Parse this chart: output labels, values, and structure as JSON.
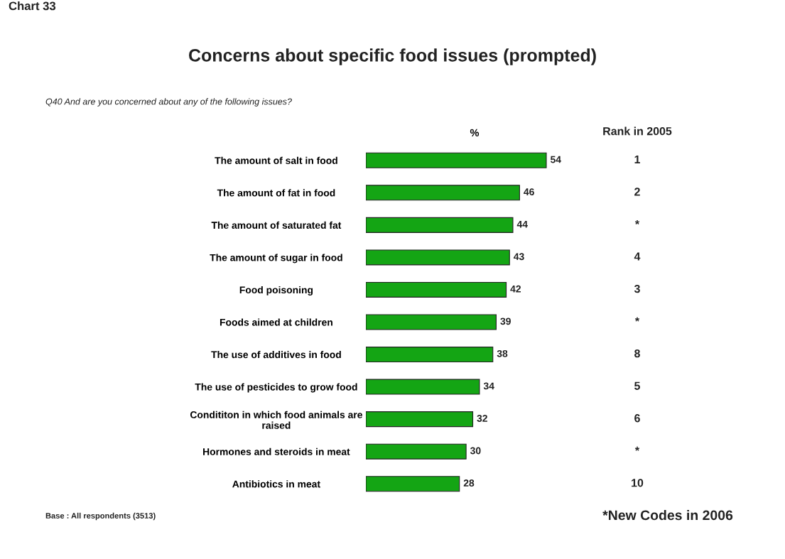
{
  "chart_data": {
    "type": "bar",
    "orientation": "horizontal",
    "title": "Concerns about specific food issues (prompted)",
    "subtitle": "Q40 And are you concerned about any of the following issues?",
    "xlabel": "%",
    "categories": [
      "The amount of salt in food",
      "The amount of fat in food",
      "The amount of saturated fat",
      "The amount of sugar in food",
      "Food poisoning",
      "Foods aimed at children",
      "The use of additives in food",
      "The use of pesticides to grow food",
      "Condititon in which food animals are\nraised",
      "Hormones and steroids in meat",
      "Antibiotics in meat"
    ],
    "values": [
      54,
      46,
      44,
      43,
      42,
      39,
      38,
      34,
      32,
      30,
      28
    ],
    "color": "#14a514",
    "data_labels": true,
    "grid": false,
    "legend": false,
    "annotations": [
      "Chart 33",
      "Rank in 2005",
      "1",
      "2",
      "*",
      "4",
      "3",
      "*",
      "8",
      "5",
      "6",
      "*",
      "10",
      "Base : All respondents (3513)",
      "*New Codes in 2006"
    ]
  }
}
